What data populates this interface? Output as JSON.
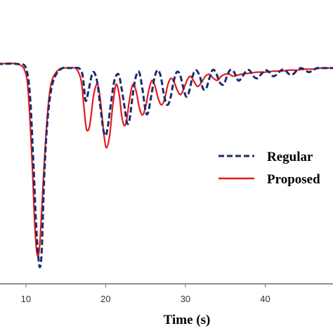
{
  "chart_data": {
    "type": "line",
    "title": "",
    "xlabel": "Time (s)",
    "ylabel": "",
    "xlim": [
      6.4,
      48.5
    ],
    "ylim": [
      -1.0,
      0.1
    ],
    "x_ticks": [
      "10",
      "20",
      "30",
      "40"
    ],
    "x_tick_values": [
      10,
      20,
      30,
      40
    ],
    "grid": false,
    "legend": "right",
    "colors": {
      "regular": "#1b2a6b",
      "proposed": "#e31a1c",
      "axis": "#6d6d6d"
    },
    "series": [
      {
        "name": "Regular",
        "style": "dashed",
        "x": [
          6.4,
          9.0,
          10.0,
          10.5,
          10.9,
          11.3,
          11.6,
          11.8,
          12.0,
          12.3,
          12.7,
          13.2,
          13.8,
          14.6,
          15.6,
          16.6,
          17.0,
          17.2,
          17.5,
          17.9,
          18.4,
          18.9,
          19.3,
          19.7,
          20.0,
          20.3,
          20.7,
          21.1,
          21.6,
          22.0,
          22.4,
          22.7,
          23.0,
          23.4,
          23.8,
          24.2,
          24.6,
          25.0,
          25.3,
          25.7,
          26.1,
          26.5,
          26.9,
          27.3,
          27.7,
          28.1,
          28.5,
          28.9,
          29.3,
          29.7,
          30.1,
          30.5,
          30.9,
          31.3,
          31.8,
          32.2,
          32.6,
          33.0,
          33.4,
          33.8,
          34.3,
          34.8,
          35.2,
          35.6,
          36.1,
          36.6,
          37.0,
          37.5,
          38.0,
          38.5,
          39.0,
          39.5,
          40.0,
          40.5,
          41.0,
          41.5,
          42.0,
          42.5,
          43.0,
          43.5,
          44.0,
          44.5,
          45.0,
          45.5,
          46.0,
          46.5,
          47.0,
          47.5,
          48.0,
          48.5
        ],
        "y": [
          0.0,
          0.0,
          -0.02,
          -0.15,
          -0.45,
          -0.8,
          -0.96,
          -0.99,
          -0.9,
          -0.55,
          -0.28,
          -0.12,
          -0.05,
          -0.02,
          -0.02,
          -0.02,
          -0.04,
          -0.08,
          -0.18,
          -0.12,
          -0.04,
          -0.08,
          -0.2,
          -0.32,
          -0.35,
          -0.3,
          -0.18,
          -0.08,
          -0.05,
          -0.12,
          -0.22,
          -0.29,
          -0.27,
          -0.15,
          -0.06,
          -0.04,
          -0.12,
          -0.23,
          -0.24,
          -0.16,
          -0.07,
          -0.03,
          -0.06,
          -0.15,
          -0.2,
          -0.17,
          -0.09,
          -0.04,
          -0.05,
          -0.11,
          -0.16,
          -0.13,
          -0.06,
          -0.03,
          -0.06,
          -0.12,
          -0.12,
          -0.07,
          -0.03,
          -0.04,
          -0.09,
          -0.1,
          -0.06,
          -0.03,
          -0.04,
          -0.08,
          -0.07,
          -0.04,
          -0.03,
          -0.06,
          -0.07,
          -0.05,
          -0.03,
          -0.04,
          -0.06,
          -0.05,
          -0.03,
          -0.03,
          -0.05,
          -0.05,
          -0.03,
          -0.02,
          -0.03,
          -0.04,
          -0.03,
          -0.02,
          -0.02,
          -0.02,
          -0.02,
          -0.02
        ]
      },
      {
        "name": "Proposed",
        "style": "solid",
        "x": [
          6.4,
          9.0,
          10.0,
          10.4,
          10.8,
          11.1,
          11.4,
          11.7,
          12.0,
          12.4,
          12.8,
          13.2,
          13.8,
          14.5,
          15.3,
          16.2,
          16.7,
          17.0,
          17.3,
          17.6,
          18.0,
          18.5,
          19.0,
          19.4,
          19.8,
          20.1,
          20.5,
          20.9,
          21.3,
          21.7,
          22.0,
          22.3,
          22.6,
          23.0,
          23.4,
          23.8,
          24.2,
          24.6,
          25.0,
          25.4,
          25.8,
          26.2,
          26.6,
          27.0,
          27.4,
          27.8,
          28.2,
          28.6,
          29.0,
          29.4,
          29.8,
          30.2,
          30.6,
          31.0,
          31.5,
          32.0,
          32.5,
          33.0,
          33.5,
          34.0,
          34.5,
          35.0,
          35.5,
          36.0,
          37.0,
          38.0,
          39.0,
          40.0,
          41.0,
          42.0,
          43.0,
          44.0,
          45.0,
          46.0,
          47.0,
          48.0,
          48.5
        ],
        "y": [
          0.0,
          0.0,
          -0.05,
          -0.2,
          -0.5,
          -0.78,
          -0.93,
          -0.9,
          -0.7,
          -0.42,
          -0.2,
          -0.09,
          -0.04,
          -0.02,
          -0.02,
          -0.02,
          -0.05,
          -0.1,
          -0.22,
          -0.32,
          -0.3,
          -0.15,
          -0.1,
          -0.2,
          -0.35,
          -0.41,
          -0.35,
          -0.2,
          -0.1,
          -0.15,
          -0.25,
          -0.3,
          -0.28,
          -0.17,
          -0.1,
          -0.13,
          -0.21,
          -0.25,
          -0.21,
          -0.13,
          -0.08,
          -0.11,
          -0.17,
          -0.2,
          -0.17,
          -0.1,
          -0.07,
          -0.09,
          -0.13,
          -0.15,
          -0.12,
          -0.08,
          -0.06,
          -0.08,
          -0.11,
          -0.09,
          -0.06,
          -0.05,
          -0.07,
          -0.08,
          -0.06,
          -0.05,
          -0.05,
          -0.06,
          -0.05,
          -0.045,
          -0.04,
          -0.04,
          -0.035,
          -0.035,
          -0.03,
          -0.03,
          -0.025,
          -0.025,
          -0.02,
          -0.02,
          -0.02
        ]
      }
    ]
  }
}
